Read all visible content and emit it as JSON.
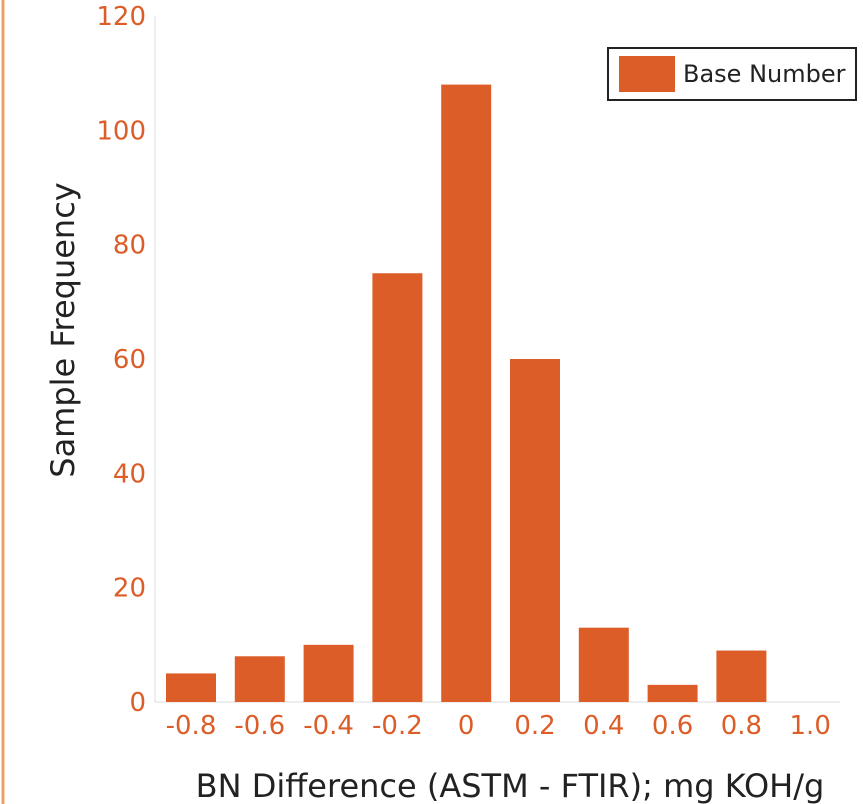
{
  "chart_data": {
    "type": "bar",
    "categories": [
      "-0.8",
      "-0.6",
      "-0.4",
      "-0.2",
      "0",
      "0.2",
      "0.4",
      "0.6",
      "0.8",
      "1.0"
    ],
    "series": [
      {
        "name": "Base Number",
        "values": [
          5,
          8,
          10,
          75,
          108,
          60,
          13,
          3,
          9,
          0
        ]
      }
    ],
    "title": "",
    "xlabel": "BN Difference (ASTM - FTIR); mg KOH/g",
    "ylabel": "Sample Frequency",
    "ylim": [
      0,
      120
    ],
    "yticks": [
      "0",
      "20",
      "40",
      "60",
      "80",
      "100",
      "120"
    ],
    "grid": false,
    "legend": "top-right",
    "colors": {
      "bar": "#DC5D28",
      "tick_text": "#DC5D28",
      "left_border": "#E9A06B"
    }
  }
}
